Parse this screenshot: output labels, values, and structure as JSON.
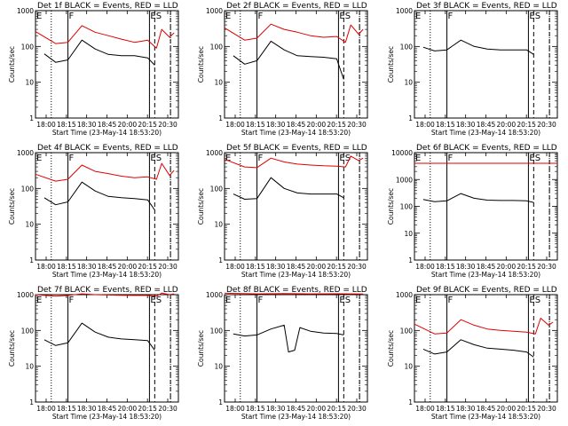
{
  "chart_data": [
    {
      "type": "line",
      "title": "Det 1f BLACK = Events, RED = LLD",
      "xlabel": "Start Time (23-May-14 18:53:20)",
      "ylabel": "Counts/sec",
      "yscale": "log",
      "ylim": [
        1,
        1000
      ],
      "xlim": [
        "17:52",
        "20:35"
      ],
      "xtick_labels": [
        "18:00",
        "18:15",
        "18:30",
        "18:45",
        "20:00",
        "20:15",
        "20:30"
      ],
      "ytick_labels": [
        "1",
        "10",
        "100",
        "1000"
      ],
      "grid": false,
      "markers": {
        "labels": [
          "E",
          "F",
          "ES"
        ],
        "solid": [
          "18:29",
          "20:02"
        ],
        "dotted": [
          "18:10",
          "20:26"
        ],
        "dashed": [
          "20:08",
          "20:26"
        ]
      },
      "series": [
        {
          "name": "BLACK",
          "color": "#000000",
          "x": [
            "18:02",
            "18:15",
            "18:29",
            "18:45",
            "19:00",
            "19:15",
            "19:30",
            "19:45",
            "20:00",
            "20:08"
          ],
          "y": [
            62,
            36,
            42,
            150,
            85,
            60,
            55,
            55,
            48,
            30
          ]
        },
        {
          "name": "RED",
          "color": "#e00000",
          "x": [
            "17:52",
            "18:15",
            "18:29",
            "18:45",
            "19:00",
            "19:15",
            "19:30",
            "19:45",
            "20:00",
            "20:10",
            "20:16",
            "20:25",
            "20:30"
          ],
          "y": [
            260,
            120,
            130,
            380,
            250,
            200,
            160,
            130,
            150,
            90,
            300,
            180,
            240
          ]
        }
      ]
    },
    {
      "type": "line",
      "title": "Det 2f BLACK = Events, RED = LLD",
      "xlabel": "Start Time (23-May-14 18:53:20)",
      "ylabel": "Counts/sec",
      "yscale": "log",
      "ylim": [
        1,
        1000
      ],
      "xlim": [
        "17:52",
        "20:35"
      ],
      "xtick_labels": [
        "18:00",
        "18:15",
        "18:30",
        "18:45",
        "20:00",
        "20:15",
        "20:30"
      ],
      "ytick_labels": [
        "1",
        "10",
        "100",
        "1000"
      ],
      "grid": false,
      "markers": {
        "labels": [
          "E",
          "F",
          "ES"
        ],
        "solid": [
          "18:29",
          "20:02"
        ],
        "dotted": [
          "18:10",
          "20:26"
        ],
        "dashed": [
          "20:08",
          "20:26"
        ]
      },
      "series": [
        {
          "name": "BLACK",
          "color": "#000000",
          "x": [
            "18:02",
            "18:15",
            "18:29",
            "18:45",
            "19:00",
            "19:15",
            "19:30",
            "19:45",
            "20:00",
            "20:08"
          ],
          "y": [
            55,
            32,
            40,
            140,
            80,
            55,
            52,
            50,
            45,
            12
          ]
        },
        {
          "name": "RED",
          "color": "#e00000",
          "x": [
            "17:52",
            "18:15",
            "18:29",
            "18:45",
            "19:00",
            "19:15",
            "19:30",
            "19:45",
            "20:00",
            "20:10",
            "20:16",
            "20:25",
            "20:30"
          ],
          "y": [
            330,
            150,
            170,
            420,
            300,
            250,
            200,
            180,
            190,
            130,
            400,
            220,
            300
          ]
        }
      ]
    },
    {
      "type": "line",
      "title": "Det 3f BLACK = Events, RED = LLD",
      "xlabel": "Start Time (23-May-14 18:53:20)",
      "ylabel": "Counts/sec",
      "yscale": "log",
      "ylim": [
        1,
        1000
      ],
      "xlim": [
        "17:52",
        "20:35"
      ],
      "xtick_labels": [
        "18:00",
        "18:15",
        "18:30",
        "18:45",
        "20:00",
        "20:15",
        "20:30"
      ],
      "ytick_labels": [
        "1",
        "10",
        "100",
        "1000"
      ],
      "grid": false,
      "markers": {
        "labels": [
          "E",
          "F",
          "ES"
        ],
        "solid": [
          "18:29",
          "20:02"
        ],
        "dotted": [
          "18:10",
          "20:26"
        ],
        "dashed": [
          "20:08",
          "20:26"
        ]
      },
      "series": [
        {
          "name": "BLACK",
          "color": "#000000",
          "x": [
            "18:02",
            "18:15",
            "18:29",
            "18:45",
            "19:00",
            "19:15",
            "19:30",
            "19:45",
            "20:00",
            "20:08"
          ],
          "y": [
            95,
            75,
            80,
            150,
            100,
            85,
            80,
            80,
            80,
            60
          ]
        }
      ]
    },
    {
      "type": "line",
      "title": "Det 4f BLACK = Events, RED = LLD",
      "xlabel": "Start Time (23-May-14 18:53:20)",
      "ylabel": "Counts/sec",
      "yscale": "log",
      "ylim": [
        1,
        1000
      ],
      "xlim": [
        "17:52",
        "20:35"
      ],
      "xtick_labels": [
        "18:00",
        "18:15",
        "18:30",
        "18:45",
        "20:00",
        "20:15",
        "20:30"
      ],
      "ytick_labels": [
        "1",
        "10",
        "100",
        "1000"
      ],
      "grid": false,
      "markers": {
        "labels": [
          "E",
          "F",
          "ES"
        ],
        "solid": [
          "18:29",
          "20:02"
        ],
        "dotted": [
          "18:10",
          "20:26"
        ],
        "dashed": [
          "20:08",
          "20:26"
        ]
      },
      "series": [
        {
          "name": "BLACK",
          "color": "#000000",
          "x": [
            "18:02",
            "18:15",
            "18:29",
            "18:45",
            "19:00",
            "19:15",
            "19:30",
            "19:45",
            "20:00",
            "20:08"
          ],
          "y": [
            55,
            35,
            42,
            150,
            85,
            60,
            55,
            52,
            48,
            25
          ]
        },
        {
          "name": "RED",
          "color": "#e00000",
          "x": [
            "17:52",
            "18:15",
            "18:29",
            "18:45",
            "19:00",
            "19:15",
            "19:30",
            "19:45",
            "20:00",
            "20:10",
            "20:16",
            "20:25",
            "20:30"
          ],
          "y": [
            250,
            160,
            180,
            450,
            300,
            260,
            220,
            200,
            210,
            180,
            500,
            230,
            320
          ]
        }
      ]
    },
    {
      "type": "line",
      "title": "Det 5f BLACK = Events, RED = LLD",
      "xlabel": "Start Time (23-May-14 18:53:20)",
      "ylabel": "Counts/sec",
      "yscale": "log",
      "ylim": [
        1,
        1000
      ],
      "xlim": [
        "17:52",
        "20:35"
      ],
      "xtick_labels": [
        "18:00",
        "18:15",
        "18:30",
        "18:45",
        "20:00",
        "20:15",
        "20:30"
      ],
      "ytick_labels": [
        "1",
        "10",
        "100",
        "1000"
      ],
      "grid": false,
      "markers": {
        "labels": [
          "E",
          "F",
          "ES"
        ],
        "solid": [
          "18:29",
          "20:02"
        ],
        "dotted": [
          "18:10",
          "20:26"
        ],
        "dashed": [
          "20:08",
          "20:26"
        ]
      },
      "series": [
        {
          "name": "BLACK",
          "color": "#000000",
          "x": [
            "18:02",
            "18:15",
            "18:29",
            "18:45",
            "19:00",
            "19:15",
            "19:30",
            "19:45",
            "20:00",
            "20:08"
          ],
          "y": [
            70,
            50,
            52,
            200,
            100,
            75,
            70,
            70,
            70,
            55
          ]
        },
        {
          "name": "RED",
          "color": "#e00000",
          "x": [
            "17:52",
            "18:15",
            "18:29",
            "18:45",
            "19:00",
            "19:15",
            "19:30",
            "19:45",
            "20:00",
            "20:10",
            "20:16",
            "20:25",
            "20:30"
          ],
          "y": [
            650,
            400,
            380,
            700,
            550,
            480,
            450,
            430,
            420,
            400,
            800,
            600,
            700
          ]
        }
      ]
    },
    {
      "type": "line",
      "title": "Det 6f BLACK = Events, RED = LLD",
      "xlabel": "Start Time (23-May-14 18:53:20)",
      "ylabel": "Counts/sec",
      "yscale": "log",
      "ylim": [
        1,
        10000
      ],
      "xlim": [
        "17:52",
        "20:35"
      ],
      "xtick_labels": [
        "18:00",
        "18:15",
        "18:30",
        "18:45",
        "20:00",
        "20:15",
        "20:30"
      ],
      "ytick_labels": [
        "1",
        "10",
        "100",
        "1000",
        "10000"
      ],
      "grid": false,
      "markers": {
        "labels": [
          "E",
          "F",
          "ES"
        ],
        "solid": [
          "18:29",
          "20:02"
        ],
        "dotted": [
          "18:10",
          "20:26"
        ],
        "dashed": [
          "20:08",
          "20:26"
        ]
      },
      "series": [
        {
          "name": "BLACK",
          "color": "#000000",
          "x": [
            "18:02",
            "18:15",
            "18:29",
            "18:45",
            "19:00",
            "19:15",
            "19:30",
            "19:45",
            "20:00",
            "20:08"
          ],
          "y": [
            180,
            150,
            160,
            300,
            200,
            170,
            165,
            165,
            160,
            140
          ]
        },
        {
          "name": "RED",
          "color": "#e00000",
          "x": [
            "17:52",
            "20:35"
          ],
          "y": [
            4000,
            4000
          ]
        }
      ]
    },
    {
      "type": "line",
      "title": "Det 7f BLACK = Events, RED = LLD",
      "xlabel": "Start Time (23-May-14 18:53:20)",
      "ylabel": "Counts/sec",
      "yscale": "log",
      "ylim": [
        1,
        1000
      ],
      "xlim": [
        "17:52",
        "20:35"
      ],
      "xtick_labels": [
        "18:00",
        "18:15",
        "18:30",
        "18:45",
        "20:00",
        "20:15",
        "20:30"
      ],
      "ytick_labels": [
        "1",
        "10",
        "100",
        "1000"
      ],
      "grid": false,
      "markers": {
        "labels": [
          "E",
          "F",
          "ES"
        ],
        "solid": [
          "18:29",
          "20:02"
        ],
        "dotted": [
          "18:10",
          "20:26"
        ],
        "dashed": [
          "20:08",
          "20:26"
        ]
      },
      "series": [
        {
          "name": "BLACK",
          "color": "#000000",
          "x": [
            "18:02",
            "18:15",
            "18:29",
            "18:45",
            "19:00",
            "19:15",
            "19:30",
            "19:45",
            "20:00",
            "20:08"
          ],
          "y": [
            55,
            38,
            45,
            160,
            90,
            65,
            58,
            55,
            52,
            28
          ]
        },
        {
          "name": "RED",
          "color": "#e00000",
          "x": [
            "17:52",
            "18:15",
            "18:29",
            "18:45",
            "19:00",
            "19:15",
            "19:30",
            "19:45",
            "20:00",
            "20:10",
            "20:16",
            "20:25",
            "20:30"
          ],
          "y": [
            1000,
            900,
            950,
            1050,
            1000,
            980,
            960,
            950,
            950,
            900,
            1100,
            1000,
            1050
          ]
        }
      ]
    },
    {
      "type": "line",
      "title": "Det 8f BLACK = Events, RED = LLD",
      "xlabel": "Start Time (23-May-14 18:53:20)",
      "ylabel": "Counts/sec",
      "yscale": "log",
      "ylim": [
        1,
        1000
      ],
      "xlim": [
        "17:52",
        "20:35"
      ],
      "xtick_labels": [
        "18:00",
        "18:15",
        "18:30",
        "18:45",
        "20:00",
        "20:15",
        "20:30"
      ],
      "ytick_labels": [
        "1",
        "10",
        "100",
        "1000"
      ],
      "grid": false,
      "markers": {
        "labels": [
          "E",
          "F",
          "ES"
        ],
        "solid": [
          "18:29",
          "20:02"
        ],
        "dotted": [
          "18:10",
          "20:26"
        ],
        "dashed": [
          "20:08",
          "20:26"
        ]
      },
      "series": [
        {
          "name": "BLACK",
          "color": "#000000",
          "x": [
            "18:02",
            "18:15",
            "18:29",
            "18:45",
            "19:00",
            "19:05",
            "19:12",
            "19:18",
            "19:30",
            "19:45",
            "20:00",
            "20:08"
          ],
          "y": [
            80,
            70,
            75,
            110,
            140,
            25,
            28,
            120,
            95,
            85,
            82,
            75
          ]
        },
        {
          "name": "RED",
          "color": "#e00000",
          "x": [
            "17:52",
            "18:30",
            "19:00",
            "19:30",
            "20:00",
            "20:30"
          ],
          "y": [
            1100,
            1050,
            1080,
            1050,
            1060,
            1040
          ]
        }
      ]
    },
    {
      "type": "line",
      "title": "Det 9f BLACK = Events, RED = LLD",
      "xlabel": "Start Time (23-May-14 18:53:20)",
      "ylabel": "Counts/sec",
      "yscale": "log",
      "ylim": [
        1,
        1000
      ],
      "xlim": [
        "17:52",
        "20:35"
      ],
      "xtick_labels": [
        "18:00",
        "18:15",
        "18:30",
        "18:45",
        "20:00",
        "20:15",
        "20:30"
      ],
      "ytick_labels": [
        "1",
        "10",
        "100",
        "1000"
      ],
      "grid": false,
      "markers": {
        "labels": [
          "E",
          "F",
          "ES"
        ],
        "solid": [
          "18:29",
          "20:02"
        ],
        "dotted": [
          "18:10",
          "20:26"
        ],
        "dashed": [
          "20:08",
          "20:26"
        ]
      },
      "series": [
        {
          "name": "BLACK",
          "color": "#000000",
          "x": [
            "18:02",
            "18:15",
            "18:29",
            "18:45",
            "19:00",
            "19:15",
            "19:30",
            "19:45",
            "20:00",
            "20:08"
          ],
          "y": [
            30,
            22,
            25,
            55,
            40,
            32,
            30,
            28,
            25,
            18
          ]
        },
        {
          "name": "RED",
          "color": "#e00000",
          "x": [
            "17:52",
            "18:15",
            "18:29",
            "18:45",
            "19:00",
            "19:15",
            "19:30",
            "19:45",
            "20:00",
            "20:10",
            "20:16",
            "20:25",
            "20:30"
          ],
          "y": [
            150,
            80,
            85,
            200,
            140,
            110,
            100,
            95,
            90,
            80,
            220,
            140,
            170
          ]
        }
      ]
    }
  ]
}
